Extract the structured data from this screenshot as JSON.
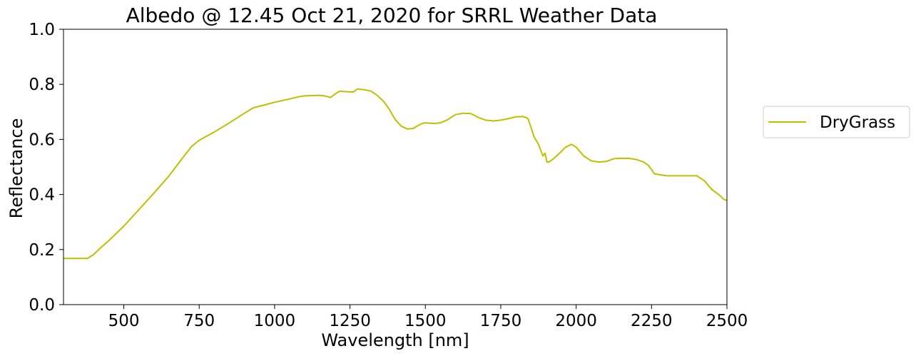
{
  "chart_data": {
    "type": "line",
    "title": "Albedo @ 12.45 Oct 21, 2020 for SRRL Weather Data",
    "xlabel": "Wavelength [nm]",
    "ylabel": "Reflectance",
    "xlim": [
      300,
      2500
    ],
    "ylim": [
      0.0,
      1.0
    ],
    "xticks": [
      500,
      750,
      1000,
      1250,
      1500,
      1750,
      2000,
      2250,
      2500
    ],
    "xtick_labels": [
      "500",
      "750",
      "1000",
      "1250",
      "1500",
      "1750",
      "2000",
      "2250",
      "2500"
    ],
    "yticks": [
      0.0,
      0.2,
      0.4,
      0.6,
      0.8,
      1.0
    ],
    "ytick_labels": [
      "0.0",
      "0.2",
      "0.4",
      "0.6",
      "0.8",
      "1.0"
    ],
    "grid": false,
    "legend_position": "outside-right",
    "series": [
      {
        "name": "DryGrass",
        "color": "#bfbf00",
        "x": [
          300,
          350,
          380,
          400,
          420,
          450,
          500,
          550,
          600,
          650,
          700,
          725,
          750,
          800,
          850,
          900,
          930,
          960,
          1000,
          1050,
          1080,
          1100,
          1150,
          1170,
          1185,
          1200,
          1215,
          1240,
          1260,
          1275,
          1300,
          1320,
          1340,
          1360,
          1380,
          1400,
          1420,
          1440,
          1460,
          1475,
          1490,
          1500,
          1530,
          1550,
          1575,
          1585,
          1600,
          1625,
          1650,
          1675,
          1700,
          1725,
          1750,
          1775,
          1800,
          1825,
          1840,
          1850,
          1860,
          1875,
          1890,
          1897,
          1903,
          1910,
          1925,
          1950,
          1965,
          1985,
          2000,
          2025,
          2050,
          2075,
          2100,
          2125,
          2150,
          2175,
          2200,
          2225,
          2240,
          2260,
          2300,
          2340,
          2375,
          2400,
          2425,
          2450,
          2475,
          2490,
          2500
        ],
        "values": [
          0.168,
          0.168,
          0.168,
          0.182,
          0.203,
          0.232,
          0.285,
          0.345,
          0.405,
          0.468,
          0.54,
          0.575,
          0.597,
          0.627,
          0.66,
          0.695,
          0.715,
          0.723,
          0.735,
          0.747,
          0.755,
          0.758,
          0.76,
          0.757,
          0.752,
          0.764,
          0.775,
          0.773,
          0.772,
          0.783,
          0.78,
          0.775,
          0.76,
          0.74,
          0.71,
          0.672,
          0.648,
          0.638,
          0.64,
          0.65,
          0.658,
          0.66,
          0.658,
          0.66,
          0.672,
          0.68,
          0.69,
          0.695,
          0.694,
          0.68,
          0.67,
          0.667,
          0.67,
          0.675,
          0.682,
          0.683,
          0.676,
          0.645,
          0.61,
          0.582,
          0.54,
          0.55,
          0.518,
          0.518,
          0.53,
          0.555,
          0.572,
          0.582,
          0.572,
          0.54,
          0.522,
          0.518,
          0.52,
          0.53,
          0.531,
          0.531,
          0.527,
          0.517,
          0.505,
          0.475,
          0.468,
          0.468,
          0.468,
          0.468,
          0.45,
          0.418,
          0.398,
          0.382,
          0.378
        ]
      }
    ]
  }
}
